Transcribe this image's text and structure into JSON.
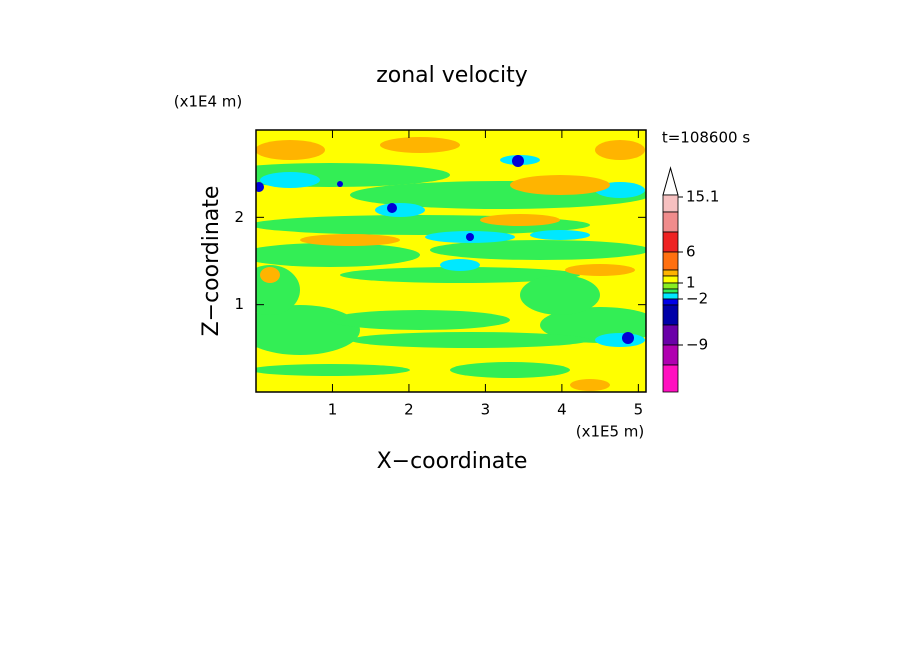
{
  "chart_data": {
    "type": "contour",
    "title": "zonal velocity",
    "xlabel": "X−coordinate",
    "ylabel": "Z−coordinate",
    "x_unit": "(x1E5 m)",
    "y_unit": "(x1E4 m)",
    "annotation": "t=108600 s",
    "xlim": [
      0,
      5.1
    ],
    "xticks": [
      1,
      2,
      3,
      4,
      5
    ],
    "ylim": [
      0,
      3
    ],
    "yticks": [
      1,
      2
    ],
    "colorbar_ticks": [
      15.1,
      6,
      1,
      {
        "value": -2,
        "label": "−2"
      },
      {
        "value": -9,
        "label": "−9"
      }
    ],
    "colorbar_colors": [
      "#f6c0c0",
      "#f08c8c",
      "#ee2222",
      "#ff7010",
      "#ffb400",
      "#ffff00",
      "#88ee22",
      "#33ee55",
      "#00e8ff",
      "#0000e8",
      "#0000a8",
      "#6a00a8",
      "#b000b0",
      "#ff10c0"
    ]
  }
}
